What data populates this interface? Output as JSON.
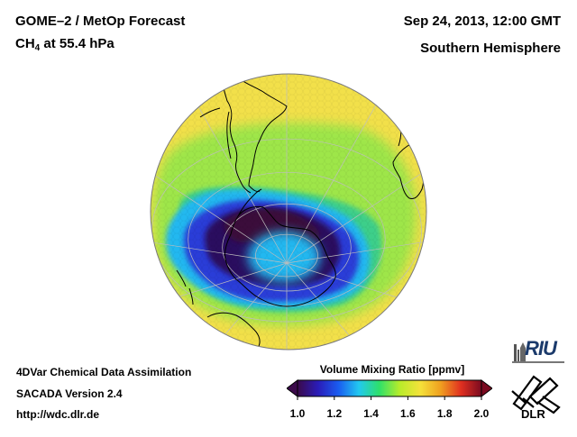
{
  "header": {
    "title_line1": "GOME–2 / MetOp Forecast",
    "species_main": "CH",
    "species_sub": "4",
    "species_rest": " at 55.4 hPa",
    "date": "Sep 24, 2013, 12:00 GMT",
    "region": "Southern Hemisphere"
  },
  "footer": {
    "line1": "4DVar Chemical Data Assimilation",
    "line2": "SACADA Version 2.4",
    "line3": "http://wdc.dlr.de"
  },
  "colorbar": {
    "title": "Volume Mixing Ratio [ppmv]",
    "ticks": [
      "1.0",
      "1.2",
      "1.4",
      "1.6",
      "1.8",
      "2.0"
    ],
    "min": 1.0,
    "max": 2.0,
    "colors": [
      "#3b0a4a",
      "#2a1cb8",
      "#1a5cf0",
      "#22c8f0",
      "#2ee06a",
      "#b8ec2a",
      "#f4e23a",
      "#f0a020",
      "#e03020",
      "#7a0a20"
    ]
  },
  "logos": {
    "riu": "RIU",
    "dlr": "DLR"
  },
  "map": {
    "projection": "orthographic",
    "hemisphere": "south",
    "field_colors": {
      "background": "#f2e04a",
      "ring": "#9ee64a",
      "inner_ring": "#3ccf8a",
      "edge": "#22b8f0",
      "vortex_mid": "#2a3cd8",
      "vortex_core": "#2b0e5e",
      "dark_lobe": "#3a0a3a"
    },
    "coast_color": "#000000",
    "grid_color": "#bdbdbd"
  }
}
